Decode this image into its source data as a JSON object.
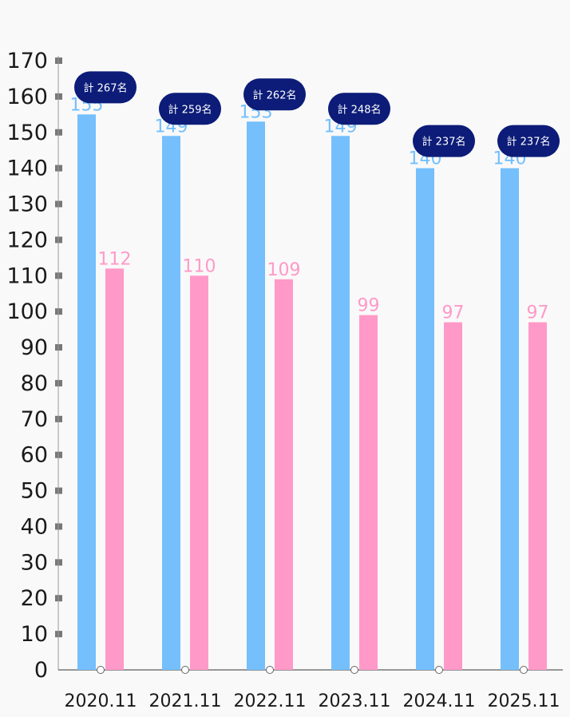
{
  "chart_data": {
    "type": "bar",
    "title": "",
    "xlabel": "",
    "ylabel": "",
    "ylim": [
      0,
      170
    ],
    "y_ticks": [
      0,
      10,
      20,
      30,
      40,
      50,
      60,
      70,
      80,
      90,
      100,
      110,
      120,
      130,
      140,
      150,
      160,
      170
    ],
    "grid": false,
    "legend": "none",
    "categories": [
      "2020.11",
      "2021.11",
      "2022.11",
      "2023.11",
      "2024.11",
      "2025.11"
    ],
    "series": [
      {
        "color": "#74bffc",
        "values": [
          155,
          149,
          153,
          149,
          140,
          140
        ]
      },
      {
        "color": "#ff99c8",
        "values": [
          112,
          110,
          109,
          99,
          97,
          97
        ]
      }
    ],
    "totals": [
      "計 267名",
      "計 259名",
      "計 262名",
      "計 248名",
      "計 237名",
      "計 237名"
    ],
    "total_badge_color": "#0c1c78",
    "axis_color": "#777777"
  }
}
